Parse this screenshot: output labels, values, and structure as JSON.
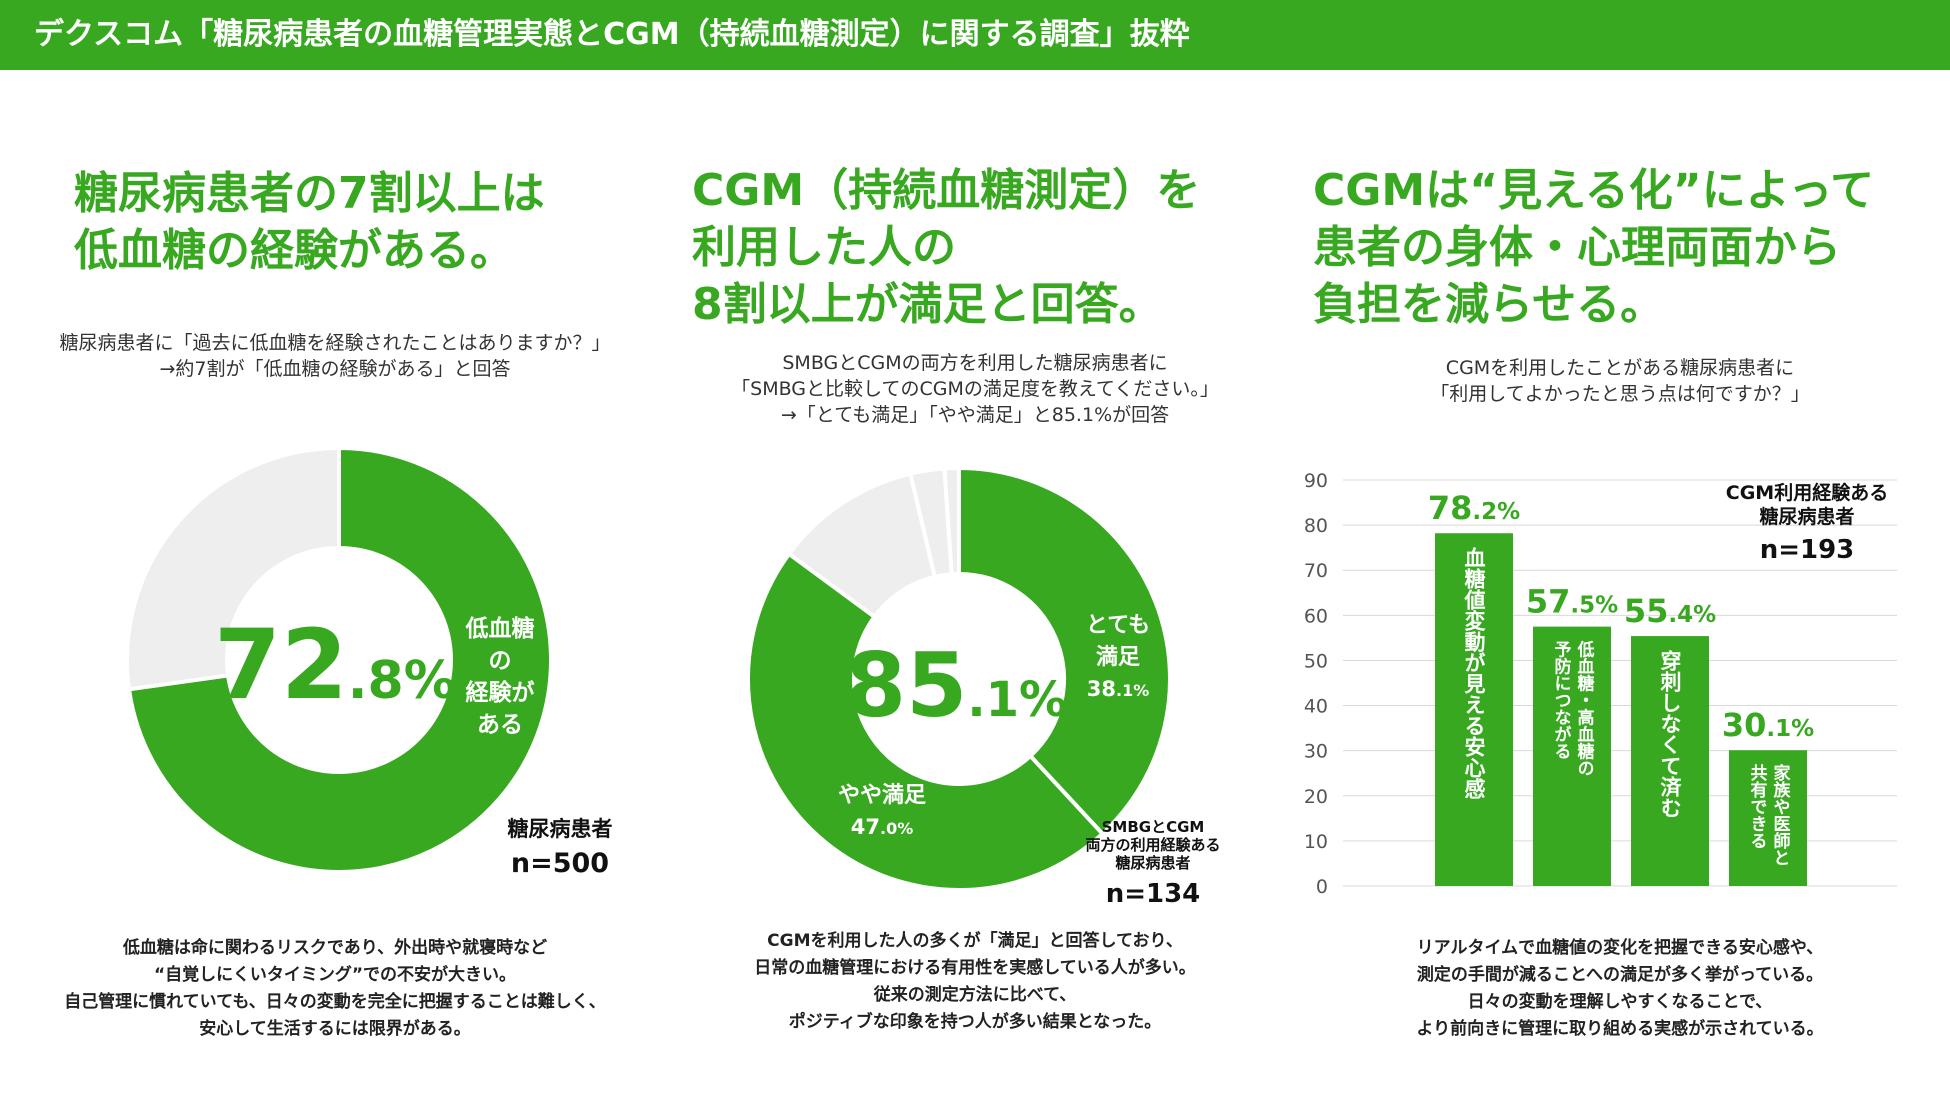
{
  "header": {
    "title": "デクスコム「糖尿病患者の血糖管理実態とCGM（持続血糖測定）に関する調査」抜粋"
  },
  "colors": {
    "accent": "#38a821",
    "light": "#eeeeee",
    "white": "#ffffff"
  },
  "panel1": {
    "headline": [
      "糖尿病患者の7割以上は",
      "低血糖の経験がある。"
    ],
    "question": [
      "糖尿病患者に「過去に低血糖を経験されたことはありますか？」",
      "→約7割が「低血糖の経験がある」と回答"
    ],
    "center_int": "72",
    "center_dec": ".8",
    "center_pct": "%",
    "segment_label": [
      "低血糖",
      "の",
      "経験が",
      "ある"
    ],
    "n_label": "糖尿病患者",
    "n_value": "n=500",
    "footer": [
      "低血糖は命に関わるリスクであり、外出時や就寝時など",
      "“自覚しにくいタイミング”での不安が大きい。",
      "自己管理に慣れていても、日々の変動を完全に把握することは難しく、",
      "安心して生活するには限界がある。"
    ]
  },
  "panel2": {
    "headline": [
      "CGM（持続血糖測定）を",
      "利用した人の",
      "8割以上が満足と回答。"
    ],
    "question": [
      "SMBGとCGMの両方を利用した糖尿病患者に",
      "「SMBGと比較してのCGMの満足度を教えてください。」",
      "→「とても満足」「やや満足」と85.1%が回答"
    ],
    "center_int": "85",
    "center_dec": ".1",
    "center_pct": "%",
    "seg1_label": [
      "とても",
      "満足"
    ],
    "seg1_int": "38",
    "seg1_dec": ".1%",
    "seg2_label": "やや満足",
    "seg2_int": "47",
    "seg2_dec": ".0%",
    "n_label": [
      "SMBGとCGM",
      "両方の利用経験ある",
      "糖尿病患者"
    ],
    "n_value": "n=134",
    "footer": [
      "CGMを利用した人の多くが「満足」と回答しており、",
      "日常の血糖管理における有用性を実感している人が多い。",
      "従来の測定方法に比べて、",
      "ポジティブな印象を持つ人が多い結果となった。"
    ]
  },
  "panel3": {
    "headline": [
      "CGMは“見える化”によって",
      "患者の身体・心理両面から",
      "負担を減らせる。"
    ],
    "question": [
      "CGMを利用したことがある糖尿病患者に",
      "「利用してよかったと思う点は何ですか？」"
    ],
    "n_label": [
      "CGM利用経験ある",
      "糖尿病患者"
    ],
    "n_value": "n=193",
    "footer": [
      "リアルタイムで血糖値の変化を把握できる安心感や、",
      "測定の手間が減ることへの満足が多く挙がっている。",
      "日々の変動を理解しやすくなることで、",
      "より前向きに管理に取り組める実感が示されている。"
    ]
  },
  "chart_data": [
    {
      "type": "pie",
      "donut": true,
      "labels": [
        "低血糖の経験がある",
        "その他"
      ],
      "values": [
        72.8,
        27.2
      ],
      "colors": [
        "#38a821",
        "#eeeeee"
      ]
    },
    {
      "type": "pie",
      "donut": true,
      "labels": [
        "とても満足",
        "やや満足",
        "other-1",
        "other-2",
        "other-3"
      ],
      "values": [
        38.1,
        47.0,
        11.2,
        2.6,
        1.1
      ],
      "colors": [
        "#38a821",
        "#38a821",
        "#eeeeee",
        "#eeeeee",
        "#eeeeee"
      ]
    },
    {
      "type": "bar",
      "categories": [
        "血糖値変動が見える安心感",
        "低血糖・高血糖の予防につながる",
        "穿刺しなくて済む",
        "家族や医師と共有できる"
      ],
      "values": [
        78.2,
        57.5,
        55.4,
        30.1
      ],
      "value_labels": [
        [
          "78",
          ".2%"
        ],
        [
          "57",
          ".5%"
        ],
        [
          "55",
          ".4%"
        ],
        [
          "30",
          ".1%"
        ]
      ],
      "bar_text": [
        [
          "血糖値変動が見える安心感"
        ],
        [
          "低血糖・高血糖の",
          "予防につながる"
        ],
        [
          "穿刺しなくて済む"
        ],
        [
          "家族や医師と",
          "共有できる"
        ]
      ],
      "ylim": [
        0,
        90
      ],
      "yticks": [
        0,
        10,
        20,
        30,
        40,
        50,
        60,
        70,
        80,
        90
      ],
      "grid": true
    }
  ]
}
